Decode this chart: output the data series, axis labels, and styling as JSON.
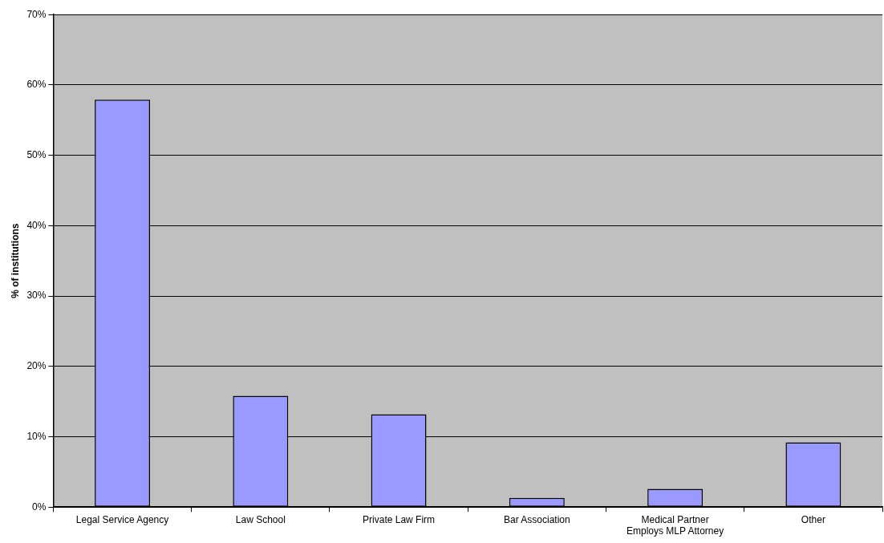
{
  "chart_data": {
    "type": "bar",
    "ylabel": "% of institutions",
    "categories": [
      "Legal Service Agency",
      "Law School",
      "Private Law Firm",
      "Bar Association",
      "Medical Partner Employs MLP Attorney",
      "Other"
    ],
    "values": [
      57.9,
      15.8,
      13.2,
      1.3,
      2.6,
      9.2
    ],
    "color": "#9999ff",
    "ylim": [
      0,
      70
    ],
    "yticks": [
      {
        "value": 0,
        "label": "0%"
      },
      {
        "value": 10,
        "label": "10%"
      },
      {
        "value": 20,
        "label": "20%"
      },
      {
        "value": 30,
        "label": "30%"
      },
      {
        "value": 40,
        "label": "40%"
      },
      {
        "value": 50,
        "label": "50%"
      },
      {
        "value": 60,
        "label": "60%"
      },
      {
        "value": 70,
        "label": "70%"
      }
    ],
    "grid": "y",
    "legend": false
  }
}
